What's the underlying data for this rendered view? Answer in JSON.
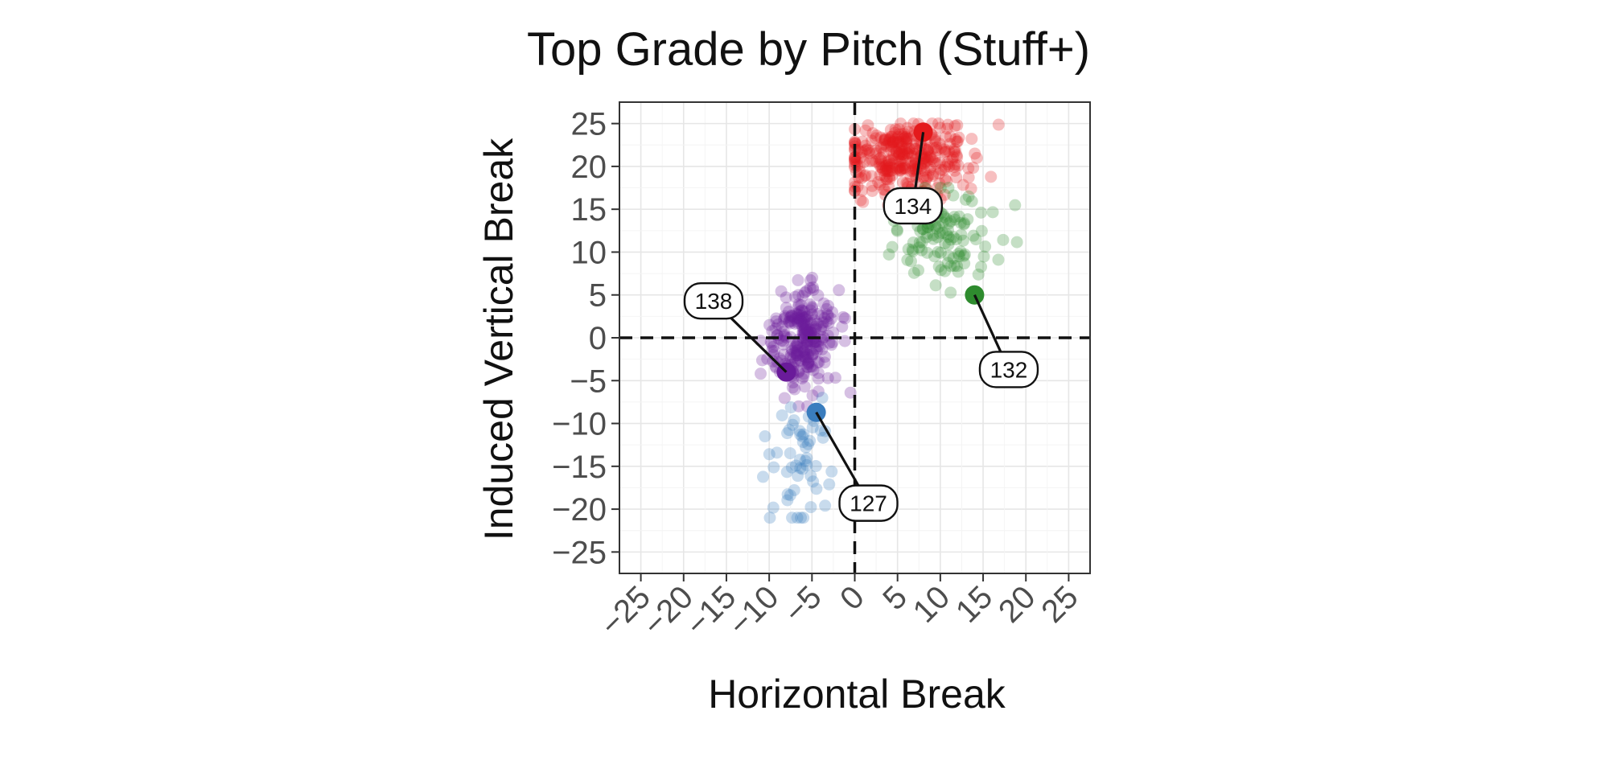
{
  "chart_data": {
    "type": "scatter",
    "title": "Top Grade by Pitch (Stuff+)",
    "xlabel": "Horizontal Break",
    "ylabel": "Induced Vertical Break",
    "xlim": [
      -27.5,
      27.5
    ],
    "ylim": [
      -27.5,
      27.5
    ],
    "x_ticks": [
      "-25",
      "-20",
      "-15",
      "-10",
      "-5",
      "0",
      "5",
      "10",
      "15",
      "20",
      "25"
    ],
    "y_ticks": [
      "25",
      "20",
      "15",
      "10",
      "5",
      "0",
      "-5",
      "-10",
      "-15",
      "-20",
      "-25"
    ],
    "x_tick_values": [
      -25,
      -20,
      -15,
      -10,
      -5,
      0,
      5,
      10,
      15,
      20,
      25
    ],
    "y_tick_values": [
      25,
      20,
      15,
      10,
      5,
      0,
      -5,
      -10,
      -15,
      -20,
      -25
    ],
    "grid": true,
    "legend": "none",
    "reference_lines": {
      "x": 0,
      "y": 0,
      "style": "dashed"
    },
    "series": [
      {
        "color": "#e41a1c",
        "cluster": {
          "center": [
            6,
            21
          ],
          "spread": [
            3.8,
            2.2
          ],
          "count": 330,
          "x_range": [
            0,
            17
          ],
          "y_range": [
            12,
            25
          ]
        },
        "highlight": {
          "x": 8,
          "y": 24
        },
        "label": {
          "text": "134",
          "x": 6.8,
          "y": 15.4
        }
      },
      {
        "color": "#2e8b2e",
        "cluster": {
          "center": [
            10.5,
            12
          ],
          "spread": [
            3.2,
            2.7
          ],
          "count": 110,
          "x_range": [
            4,
            19
          ],
          "y_range": [
            4,
            17.5
          ]
        },
        "highlight": {
          "x": 14,
          "y": 5
        },
        "label": {
          "text": "132",
          "x": 18.0,
          "y": -3.7
        }
      },
      {
        "color": "#6a1b9a",
        "cluster": {
          "center": [
            -6,
            0
          ],
          "spread": [
            2.0,
            3.0
          ],
          "count": 260,
          "x_range": [
            -11,
            -0.5
          ],
          "y_range": [
            -8,
            7
          ]
        },
        "highlight": {
          "x": -8,
          "y": -4
        },
        "label": {
          "text": "138",
          "x": -16.5,
          "y": 4.3
        }
      },
      {
        "color": "#3a7dbe",
        "cluster": {
          "center": [
            -6.5,
            -14
          ],
          "spread": [
            2.0,
            3.8
          ],
          "count": 55,
          "x_range": [
            -12.5,
            -0.5
          ],
          "y_range": [
            -21,
            -7
          ]
        },
        "highlight": {
          "x": -4.5,
          "y": -8.7
        },
        "label": {
          "text": "127",
          "x": 1.6,
          "y": -19.3
        }
      }
    ]
  }
}
